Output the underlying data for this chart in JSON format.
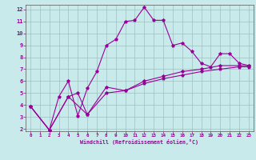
{
  "xlabel": "Windchill (Refroidissement éolien,°C)",
  "bg_color": "#c8eaea",
  "grid_color": "#9dbfbf",
  "line_color": "#990099",
  "spine_color": "#555555",
  "xlim": [
    -0.5,
    23.5
  ],
  "ylim": [
    1.8,
    12.4
  ],
  "xticks": [
    0,
    1,
    2,
    3,
    4,
    5,
    6,
    7,
    8,
    9,
    10,
    11,
    12,
    13,
    14,
    15,
    16,
    17,
    18,
    19,
    20,
    21,
    22,
    23
  ],
  "yticks": [
    2,
    3,
    4,
    5,
    6,
    7,
    8,
    9,
    10,
    11,
    12
  ],
  "series": [
    {
      "x": [
        0,
        2,
        3,
        4,
        5,
        6,
        7,
        8,
        9,
        10,
        11,
        12,
        13,
        14,
        15,
        16,
        17,
        18,
        19,
        20,
        21,
        22,
        23
      ],
      "y": [
        3.9,
        1.9,
        4.7,
        6.0,
        3.1,
        5.4,
        6.8,
        9.0,
        9.5,
        11.0,
        11.1,
        12.2,
        11.1,
        11.1,
        9.0,
        9.2,
        8.5,
        7.5,
        7.2,
        8.3,
        8.3,
        7.5,
        7.3
      ]
    },
    {
      "x": [
        0,
        2,
        4,
        5,
        6,
        8,
        10,
        12,
        14,
        16,
        18,
        20,
        22,
        23
      ],
      "y": [
        3.9,
        1.9,
        4.7,
        5.0,
        3.2,
        5.5,
        5.2,
        6.0,
        6.4,
        6.8,
        7.0,
        7.3,
        7.3,
        7.3
      ]
    },
    {
      "x": [
        0,
        2,
        4,
        6,
        8,
        10,
        12,
        14,
        16,
        18,
        20,
        22,
        23
      ],
      "y": [
        3.9,
        1.9,
        4.7,
        3.2,
        5.0,
        5.2,
        5.8,
        6.2,
        6.5,
        6.8,
        7.0,
        7.2,
        7.2
      ]
    }
  ]
}
